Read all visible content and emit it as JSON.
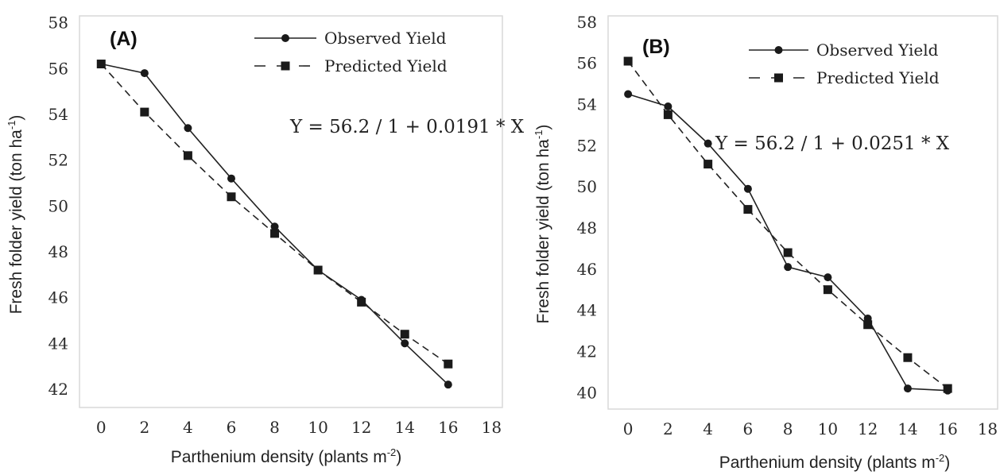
{
  "chart_data": [
    {
      "type": "line",
      "panel_label": "(A)",
      "equation": "Y = 56.2 / 1 + 0.0191 *  X",
      "xlabel": {
        "main": "Parthenium density (plants m",
        "sup": "-2",
        "end": ")"
      },
      "ylabel": {
        "main": "Fresh folder yield (ton ha",
        "sup": "-1",
        "end": ")"
      },
      "xlim": [
        -1,
        18.5
      ],
      "ylim": [
        41.2,
        58.3
      ],
      "xticks": [
        0,
        2,
        4,
        6,
        8,
        10,
        12,
        14,
        16,
        18
      ],
      "yticks": [
        42,
        44,
        46,
        48,
        50,
        52,
        54,
        56,
        58
      ],
      "grid": false,
      "legend_position": "top-right",
      "series": [
        {
          "name": "Observed Yield",
          "marker": "circle",
          "dash": "solid",
          "x": [
            0,
            2,
            4,
            6,
            8,
            10,
            12,
            14,
            16
          ],
          "y": [
            56.2,
            55.8,
            53.4,
            51.2,
            49.1,
            47.2,
            45.9,
            44.0,
            42.2
          ]
        },
        {
          "name": "Predicted Yield",
          "marker": "square",
          "dash": "dashed",
          "x": [
            0,
            2,
            4,
            6,
            8,
            10,
            12,
            14,
            16
          ],
          "y": [
            56.2,
            54.1,
            52.2,
            50.4,
            48.8,
            47.2,
            45.8,
            44.4,
            43.1
          ]
        }
      ]
    },
    {
      "type": "line",
      "panel_label": "(B)",
      "equation": "Y = 56.2 / 1 + 0.0251 *  X",
      "xlabel": {
        "main": "Parthenium density (plants m",
        "sup": "-2",
        "end": ")"
      },
      "ylabel": {
        "main": "Fresh folder yield (ton ha",
        "sup": "-1",
        "end": ")"
      },
      "xlim": [
        -1,
        18.5
      ],
      "ylim": [
        39.2,
        58.3
      ],
      "xticks": [
        0,
        2,
        4,
        6,
        8,
        10,
        12,
        14,
        16,
        18
      ],
      "yticks": [
        40,
        42,
        44,
        46,
        48,
        50,
        52,
        54,
        56,
        58
      ],
      "grid": false,
      "legend_position": "top-right",
      "series": [
        {
          "name": "Observed Yield",
          "marker": "circle",
          "dash": "solid",
          "x": [
            0,
            2,
            4,
            6,
            8,
            10,
            12,
            14,
            16
          ],
          "y": [
            54.5,
            53.9,
            52.1,
            49.9,
            46.1,
            45.6,
            43.6,
            40.2,
            40.1
          ]
        },
        {
          "name": "Predicted Yield",
          "marker": "square",
          "dash": "dashed",
          "x": [
            0,
            2,
            4,
            6,
            8,
            10,
            12,
            14,
            16
          ],
          "y": [
            56.1,
            53.5,
            51.1,
            48.9,
            46.8,
            45.0,
            43.3,
            41.7,
            40.2
          ]
        }
      ]
    }
  ],
  "colors": {
    "line": "#222222",
    "frame": "#d9d9d9",
    "marker": "#1a1a1a"
  }
}
